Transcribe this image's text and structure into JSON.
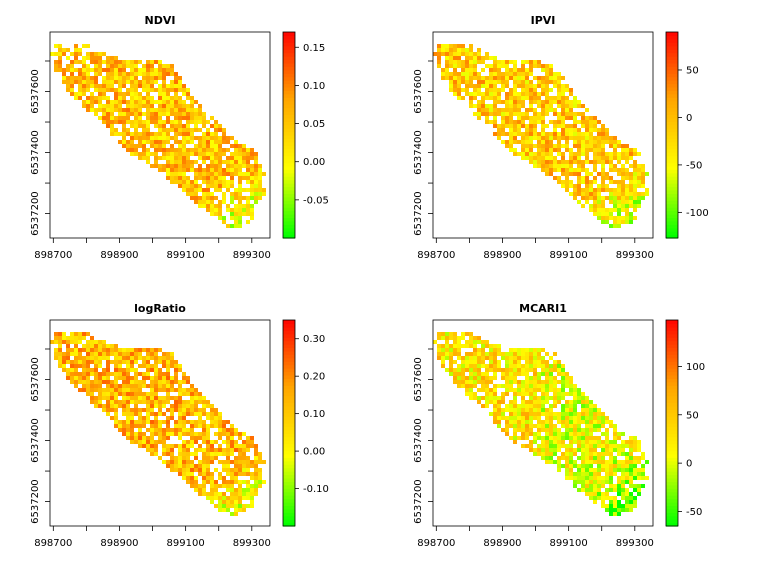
{
  "chart_data": [
    {
      "type": "heatmap",
      "title": "NDVI",
      "xlabel": "",
      "ylabel": "",
      "x_ticks": [
        "898700",
        "898900",
        "899100",
        "899300"
      ],
      "y_ticks": [
        "6537200",
        "6537400",
        "6537600"
      ],
      "xlim": [
        898690,
        899355
      ],
      "ylim": [
        6537120,
        6537795
      ],
      "legend_ticks": [
        "0.15",
        "0.10",
        "0.05",
        "0.00",
        "-0.05"
      ],
      "legend_values": [
        0.15,
        0.1,
        0.05,
        0.0,
        -0.05
      ],
      "legend_range": [
        -0.1,
        0.17
      ],
      "color_ramp": [
        "#00ff00",
        "#ffff00",
        "#ffa500",
        "#ff0000"
      ],
      "grid": false,
      "legend_position": "right"
    },
    {
      "type": "heatmap",
      "title": "IPVI",
      "xlabel": "",
      "ylabel": "",
      "x_ticks": [
        "898700",
        "898900",
        "899100",
        "899300"
      ],
      "y_ticks": [
        "6537200",
        "6537400",
        "6537600"
      ],
      "xlim": [
        898690,
        899355
      ],
      "ylim": [
        6537120,
        6537795
      ],
      "legend_ticks": [
        "50",
        "0",
        "-50",
        "-100"
      ],
      "legend_values": [
        50,
        0,
        -50,
        -100
      ],
      "legend_range": [
        -127,
        90
      ],
      "color_ramp": [
        "#00ff00",
        "#ffff00",
        "#ffa500",
        "#ff0000"
      ],
      "grid": false,
      "legend_position": "right"
    },
    {
      "type": "heatmap",
      "title": "logRatio",
      "xlabel": "",
      "ylabel": "",
      "x_ticks": [
        "898700",
        "898900",
        "899100",
        "899300"
      ],
      "y_ticks": [
        "6537200",
        "6537400",
        "6537600"
      ],
      "xlim": [
        898690,
        899355
      ],
      "ylim": [
        6537120,
        6537795
      ],
      "legend_ticks": [
        "0.30",
        "0.20",
        "0.10",
        "0.00",
        "-0.10"
      ],
      "legend_values": [
        0.3,
        0.2,
        0.1,
        0.0,
        -0.1
      ],
      "legend_range": [
        -0.2,
        0.35
      ],
      "color_ramp": [
        "#00ff00",
        "#ffff00",
        "#ffa500",
        "#ff0000"
      ],
      "grid": false,
      "legend_position": "right"
    },
    {
      "type": "heatmap",
      "title": "MCARI1",
      "xlabel": "",
      "ylabel": "",
      "x_ticks": [
        "898700",
        "898900",
        "899100",
        "899300"
      ],
      "y_ticks": [
        "6537200",
        "6537400",
        "6537600"
      ],
      "xlim": [
        898690,
        899355
      ],
      "ylim": [
        6537120,
        6537795
      ],
      "legend_ticks": [
        "100",
        "50",
        "0",
        "-50"
      ],
      "legend_values": [
        100,
        50,
        0,
        -50
      ],
      "legend_range": [
        -65,
        148
      ],
      "color_ramp": [
        "#00ff00",
        "#ffff00",
        "#ffa500",
        "#ff0000"
      ],
      "grid": false,
      "legend_position": "right"
    }
  ]
}
